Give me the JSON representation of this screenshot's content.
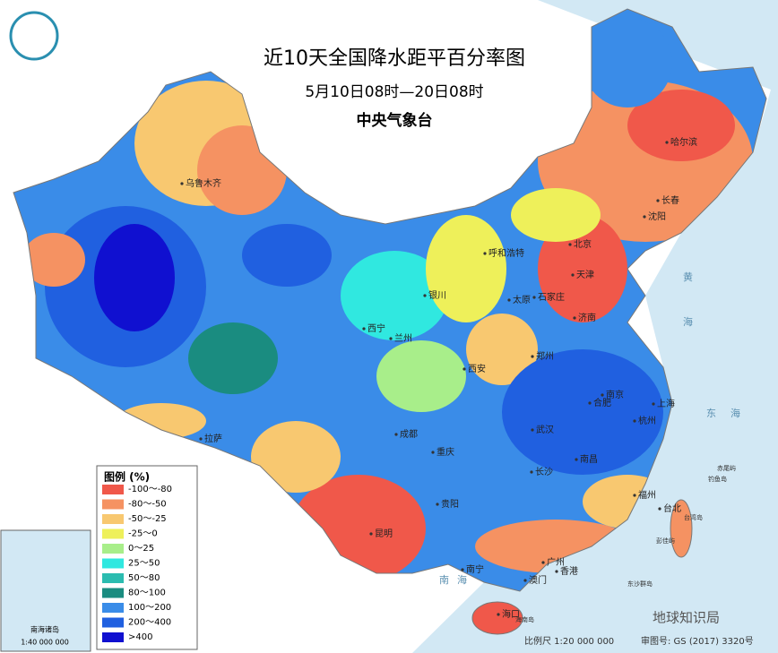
{
  "header": {
    "title": "近10天全国降水距平百分率图",
    "subtitle": "5月10日08时—20日08时",
    "agency": "中央气象台"
  },
  "legend": {
    "title": "图例 (%)",
    "items": [
      {
        "label": "-100～-80",
        "color": "#f0584a"
      },
      {
        "label": "-80～-50",
        "color": "#f59262"
      },
      {
        "label": "-50～-25",
        "color": "#f8c870"
      },
      {
        "label": "-25～0",
        "color": "#eef05a"
      },
      {
        "label": "0～25",
        "color": "#a8ee8a"
      },
      {
        "label": "25～50",
        "color": "#30e8e0"
      },
      {
        "label": "50～80",
        "color": "#2bbcb0"
      },
      {
        "label": "80～100",
        "color": "#1a8c80"
      },
      {
        "label": "100～200",
        "color": "#3a8ce8"
      },
      {
        "label": "200～400",
        "color": "#2060e0"
      },
      {
        "label": ">400",
        "color": "#1010d0"
      }
    ]
  },
  "cities": [
    "乌鲁木齐",
    "拉萨",
    "西宁",
    "兰州",
    "银川",
    "呼和浩特",
    "北京",
    "天津",
    "石家庄",
    "太原",
    "济南",
    "郑州",
    "西安",
    "成都",
    "重庆",
    "贵阳",
    "昆明",
    "南宁",
    "广州",
    "香港",
    "澳门",
    "海口",
    "长沙",
    "南昌",
    "武汉",
    "合肥",
    "南京",
    "上海",
    "杭州",
    "福州",
    "台北",
    "哈尔滨",
    "长春",
    "沈阳"
  ],
  "seas": [
    "黄",
    "海",
    "东",
    "海",
    "南",
    "海"
  ],
  "islands": [
    "台湾岛",
    "海南岛",
    "赤尾屿",
    "钓鱼岛",
    "彭佳屿",
    "东沙群岛"
  ],
  "inset": {
    "title": "南海诸岛",
    "scale": "1:40 000 000"
  },
  "footer": {
    "scale": "比例尺 1:20 000 000",
    "review": "审图号: GS (2017) 3320号",
    "watermark": "地球知识局"
  }
}
